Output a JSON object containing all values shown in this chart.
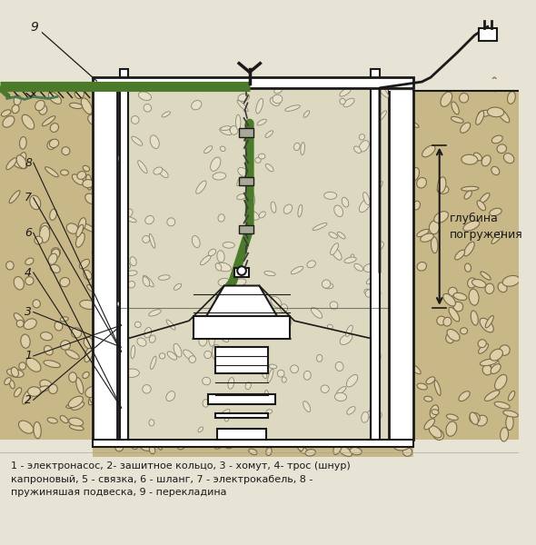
{
  "bg_color": "#e8e4d5",
  "gravel_fill": "#c8b888",
  "gravel_edge": "#7a6a48",
  "gravel_stone": "#ddd0a8",
  "inner_fill": "#ddd8c0",
  "wall_color": "#ffffff",
  "line_color": "#1a1a1a",
  "hose_color": "#4a7a2a",
  "hose_edge": "#2a5010",
  "rope_color": "#4a3a1a",
  "pump_fill": "#ffffff",
  "caption_line1": "1 - электронасос, 2- зашитное кольцо, 3 - хомут, 4- трос (шнур)",
  "caption_line2": "капроновый, 5 - связка, 6 - шланг, 7 - электрокабель, 8 -",
  "caption_line3": "пружиняшая подвеска, 9 - перекладина",
  "depth_label": "глубина\nпогружения"
}
